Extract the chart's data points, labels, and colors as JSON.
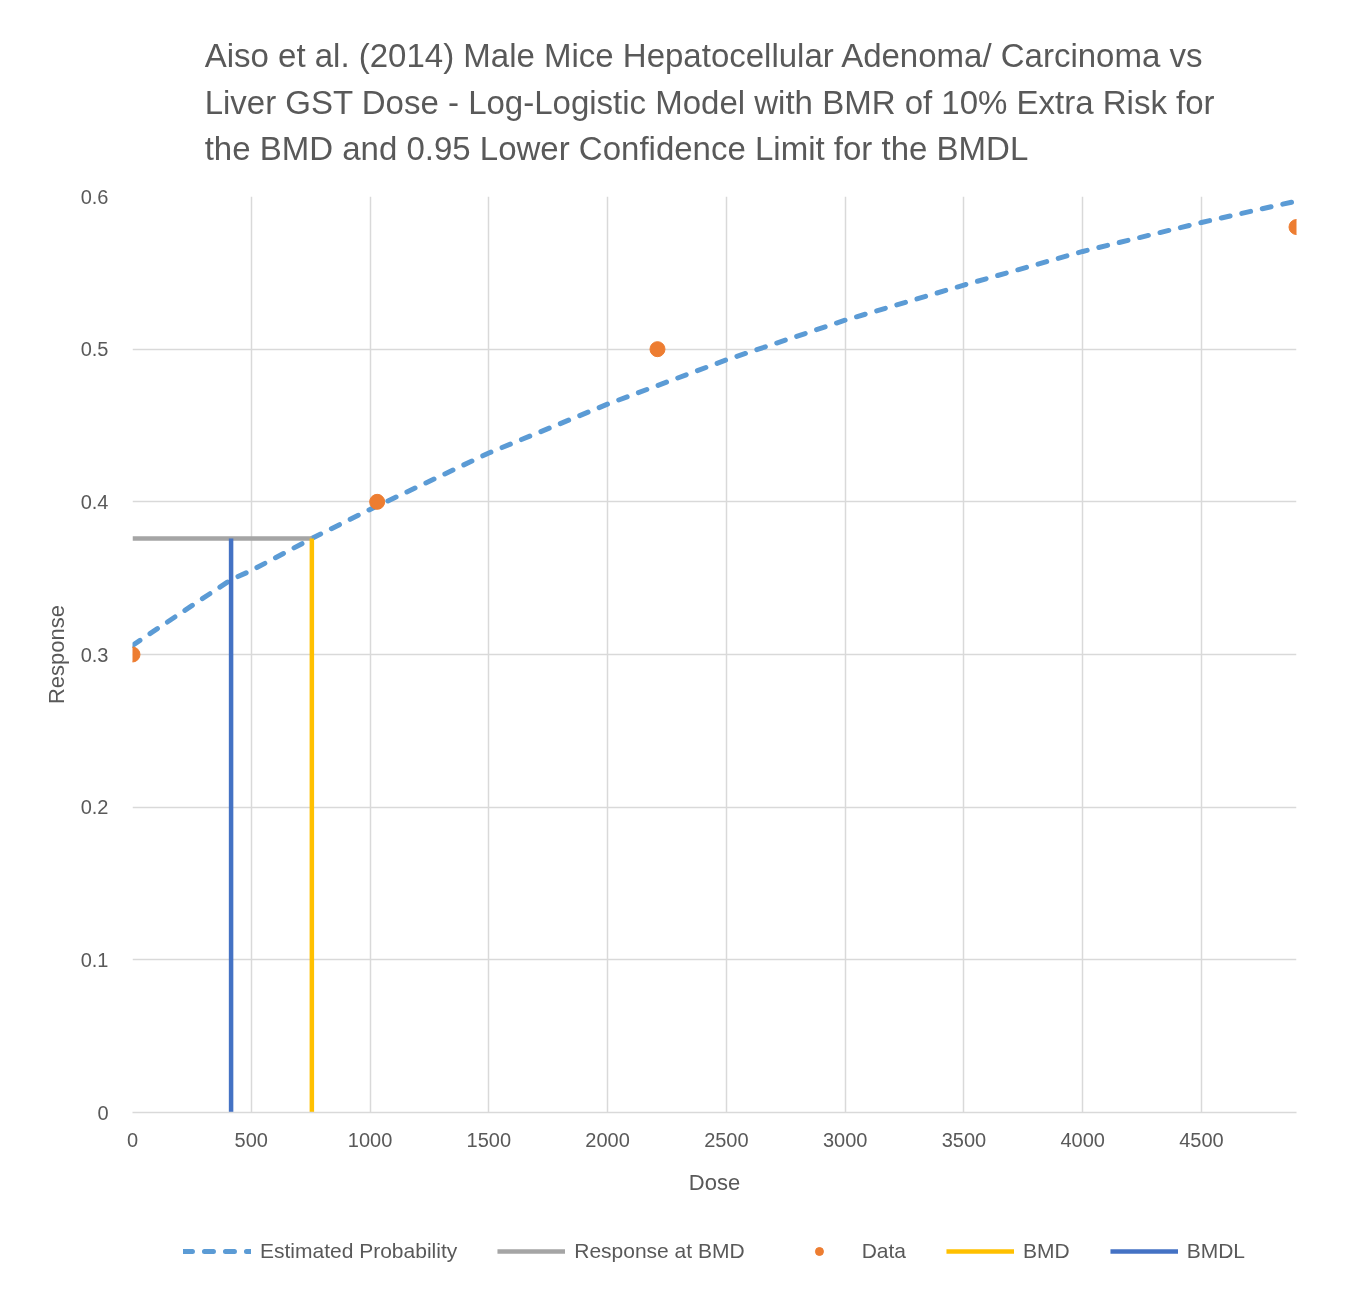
{
  "chart_data": {
    "type": "line",
    "title": "Aiso et al. (2014) Male Mice Hepatocellular Adenoma/ Carcinoma vs Liver GST Dose -  Log-Logistic Model with BMR of 10% Extra Risk for the BMD and 0.95 Lower Confidence Limit for the BMDL",
    "xlabel": "Dose",
    "ylabel": "Response",
    "xlim": [
      0,
      4900
    ],
    "ylim": [
      0,
      0.6
    ],
    "xticks": [
      0,
      500,
      1000,
      1500,
      2000,
      2500,
      3000,
      3500,
      4000,
      4500
    ],
    "yticks": [
      0,
      0.1,
      0.2,
      0.3,
      0.4,
      0.5,
      0.6
    ],
    "grid": true,
    "legend": "bottom",
    "series": [
      {
        "name": "Estimated Probability",
        "line_style": "dashed",
        "color": "#5b9bd5",
        "x": [
          0,
          250,
          415,
          500,
          755,
          1000,
          1500,
          2000,
          2500,
          3000,
          3500,
          4000,
          4500,
          4900
        ],
        "values": [
          0.306,
          0.332,
          0.349,
          0.355,
          0.376,
          0.395,
          0.432,
          0.464,
          0.493,
          0.519,
          0.542,
          0.564,
          0.583,
          0.597
        ]
      },
      {
        "name": "Response at BMD",
        "line_style": "solid",
        "color": "#a5a5a5",
        "x": [
          0,
          755
        ],
        "values": [
          0.376,
          0.376
        ]
      },
      {
        "name": "Data",
        "type": "scatter",
        "marker": "circle",
        "color": "#ed7d31",
        "x": [
          0,
          1030,
          2210,
          4900
        ],
        "values": [
          0.3,
          0.4,
          0.5,
          0.58
        ]
      },
      {
        "name": "BMD",
        "line_style": "solid",
        "color": "#ffc000",
        "x": [
          755,
          755
        ],
        "values": [
          0,
          0.376
        ]
      },
      {
        "name": "BMDL",
        "line_style": "solid",
        "color": "#4472c4",
        "x": [
          415,
          415
        ],
        "values": [
          0,
          0.376
        ]
      }
    ]
  }
}
